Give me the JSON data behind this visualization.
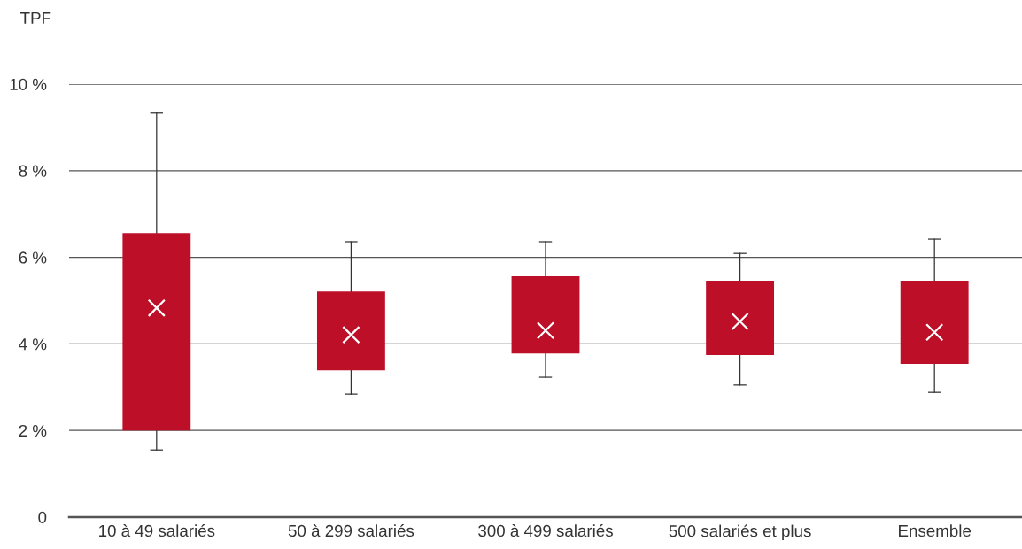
{
  "chart_data": {
    "type": "box",
    "ylabel": "TPF",
    "categories": [
      "10 à 49 salariés",
      "50 à 299 salariés",
      "300 à 499 salariés",
      "500 salariés et plus",
      "Ensemble"
    ],
    "boxes": [
      {
        "low": 1.55,
        "q1": 2.0,
        "median": null,
        "q3": 6.56,
        "high": 9.33,
        "mean": 4.83
      },
      {
        "low": 2.84,
        "q1": 3.39,
        "median": null,
        "q3": 5.21,
        "high": 6.36,
        "mean": 4.21
      },
      {
        "low": 3.23,
        "q1": 3.78,
        "median": null,
        "q3": 5.56,
        "high": 6.36,
        "mean": 4.31
      },
      {
        "low": 3.05,
        "q1": 3.74,
        "median": null,
        "q3": 5.46,
        "high": 6.09,
        "mean": 4.52
      },
      {
        "low": 2.88,
        "q1": 3.54,
        "median": null,
        "q3": 5.46,
        "high": 6.42,
        "mean": 4.27
      }
    ],
    "color": "#be0f29",
    "ylim": [
      0,
      10
    ],
    "yticks": [
      0,
      {
        "value": 2,
        "label": "2 %"
      },
      {
        "value": 4,
        "label": "4 %"
      },
      {
        "value": 6,
        "label": "6 %"
      },
      {
        "value": 8,
        "label": "8 %"
      },
      {
        "value": 10,
        "label": "10 %"
      }
    ],
    "grid": "y",
    "marker": "cross"
  }
}
